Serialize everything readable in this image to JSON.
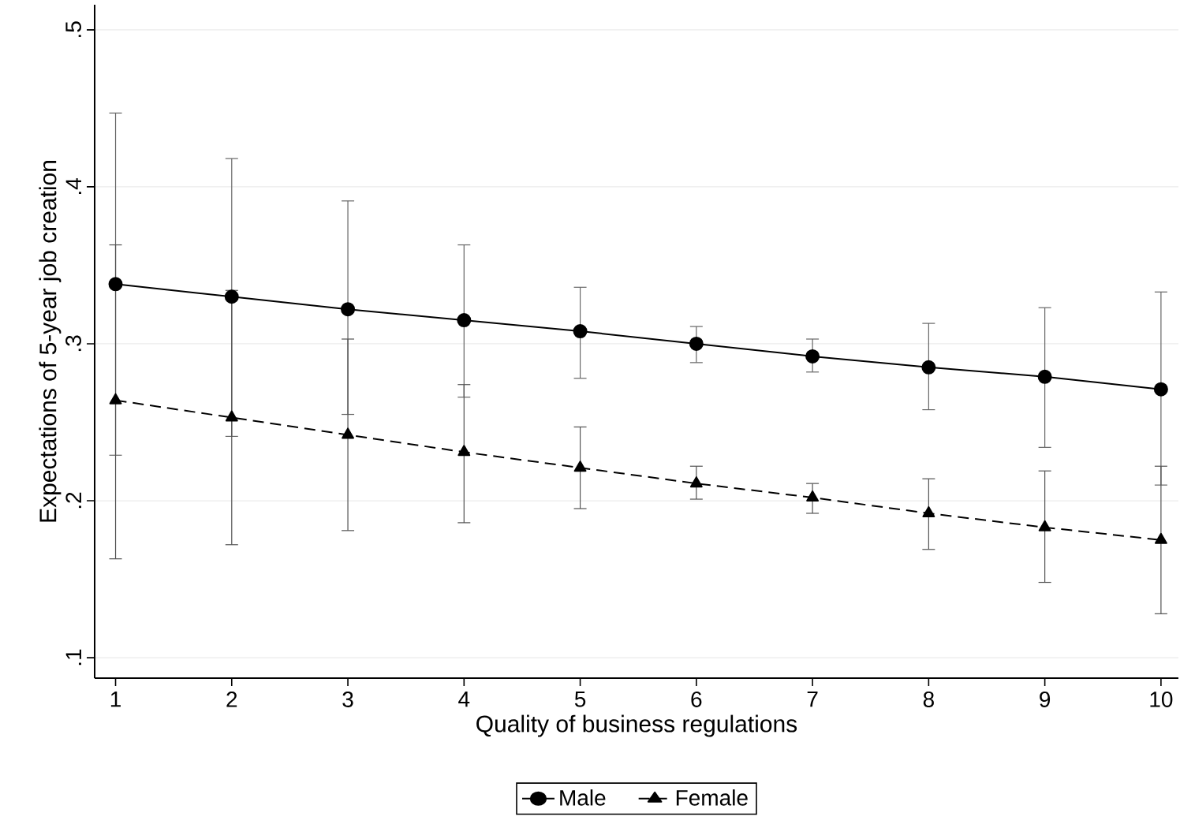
{
  "chart_data": {
    "type": "line",
    "xlabel": "Quality of business regulations",
    "ylabel": "Expectations of 5-year job creation",
    "x": [
      1,
      2,
      3,
      4,
      5,
      6,
      7,
      8,
      9,
      10
    ],
    "xlim": [
      0.82,
      10.15
    ],
    "xticks": [
      1,
      2,
      3,
      4,
      5,
      6,
      7,
      8,
      9,
      10
    ],
    "ylim": [
      0.087,
      0.516
    ],
    "yticks": [
      {
        "value": 0.1,
        "label": ".1"
      },
      {
        "value": 0.2,
        "label": ".2"
      },
      {
        "value": 0.3,
        "label": ".3"
      },
      {
        "value": 0.4,
        "label": ".4"
      },
      {
        "value": 0.5,
        "label": ".5"
      }
    ],
    "grid": "y",
    "legend": "bottom",
    "series": [
      {
        "name": "Male",
        "color": "#000000",
        "marker": "circle",
        "line_style": "solid",
        "values": [
          0.338,
          0.33,
          0.322,
          0.315,
          0.308,
          0.3,
          0.292,
          0.285,
          0.279,
          0.271
        ],
        "errors": [
          [
            0.229,
            0.447
          ],
          [
            0.241,
            0.418
          ],
          [
            0.255,
            0.391
          ],
          [
            0.266,
            0.363
          ],
          [
            0.278,
            0.336
          ],
          [
            0.288,
            0.311
          ],
          [
            0.282,
            0.303
          ],
          [
            0.258,
            0.313
          ],
          [
            0.234,
            0.323
          ],
          [
            0.21,
            0.333
          ]
        ]
      },
      {
        "name": "Female",
        "color": "#000000",
        "marker": "triangle",
        "line_style": "dashed",
        "values": [
          0.264,
          0.253,
          0.242,
          0.231,
          0.221,
          0.211,
          0.202,
          0.192,
          0.183,
          0.175
        ],
        "errors": [
          [
            0.163,
            0.363
          ],
          [
            0.172,
            0.334
          ],
          [
            0.181,
            0.303
          ],
          [
            0.186,
            0.274
          ],
          [
            0.195,
            0.247
          ],
          [
            0.201,
            0.222
          ],
          [
            0.192,
            0.211
          ],
          [
            0.169,
            0.214
          ],
          [
            0.148,
            0.219
          ],
          [
            0.128,
            0.222
          ]
        ]
      }
    ]
  }
}
